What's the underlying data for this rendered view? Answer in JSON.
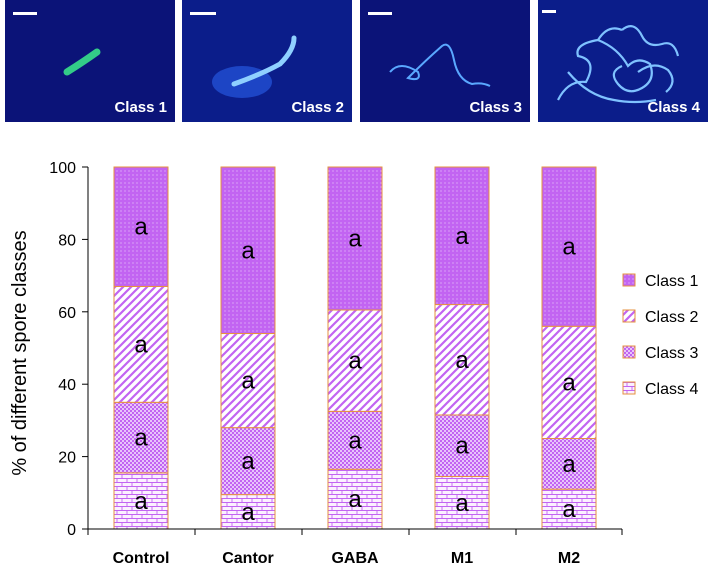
{
  "panels": [
    {
      "label": "Class 1"
    },
    {
      "label": "Class 2"
    },
    {
      "label": "Class 3"
    },
    {
      "label": "Class 4"
    }
  ],
  "colors": {
    "fill": "#c264f2",
    "hatch": "#ffffff",
    "border": "#e6913f",
    "panel_bg": "#0b1378",
    "glow": "#4b8cff"
  },
  "chart_data": {
    "type": "bar",
    "stacked": true,
    "categories": [
      "Control",
      "Cantor",
      "GABA",
      "M1",
      "M2"
    ],
    "ylabel": "% of different spore classes",
    "xlabel": "",
    "ylim": [
      0,
      100
    ],
    "yticks": [
      0,
      20,
      40,
      60,
      80,
      100
    ],
    "legend_position": "right",
    "series": [
      {
        "name": "Class 4",
        "pattern": "brick",
        "values": [
          15.5,
          9.5,
          16.5,
          14.5,
          11
        ],
        "labels": [
          "a",
          "a",
          "a",
          "a",
          "a"
        ]
      },
      {
        "name": "Class 3",
        "pattern": "dots",
        "values": [
          19.5,
          18.5,
          16.0,
          17.0,
          14.0
        ],
        "labels": [
          "a",
          "a",
          "a",
          "a",
          "a"
        ]
      },
      {
        "name": "Class 2",
        "pattern": "diag",
        "values": [
          32.0,
          26.0,
          28.0,
          30.5,
          31.0
        ],
        "labels": [
          "a",
          "a",
          "a",
          "a",
          "a"
        ]
      },
      {
        "name": "Class 1",
        "pattern": "fine",
        "values": [
          33.0,
          46.0,
          39.5,
          38.0,
          44.0
        ],
        "labels": [
          "a",
          "a",
          "a",
          "a",
          "a"
        ]
      }
    ],
    "legend_order": [
      "Class 1",
      "Class 2",
      "Class 3",
      "Class 4"
    ]
  }
}
